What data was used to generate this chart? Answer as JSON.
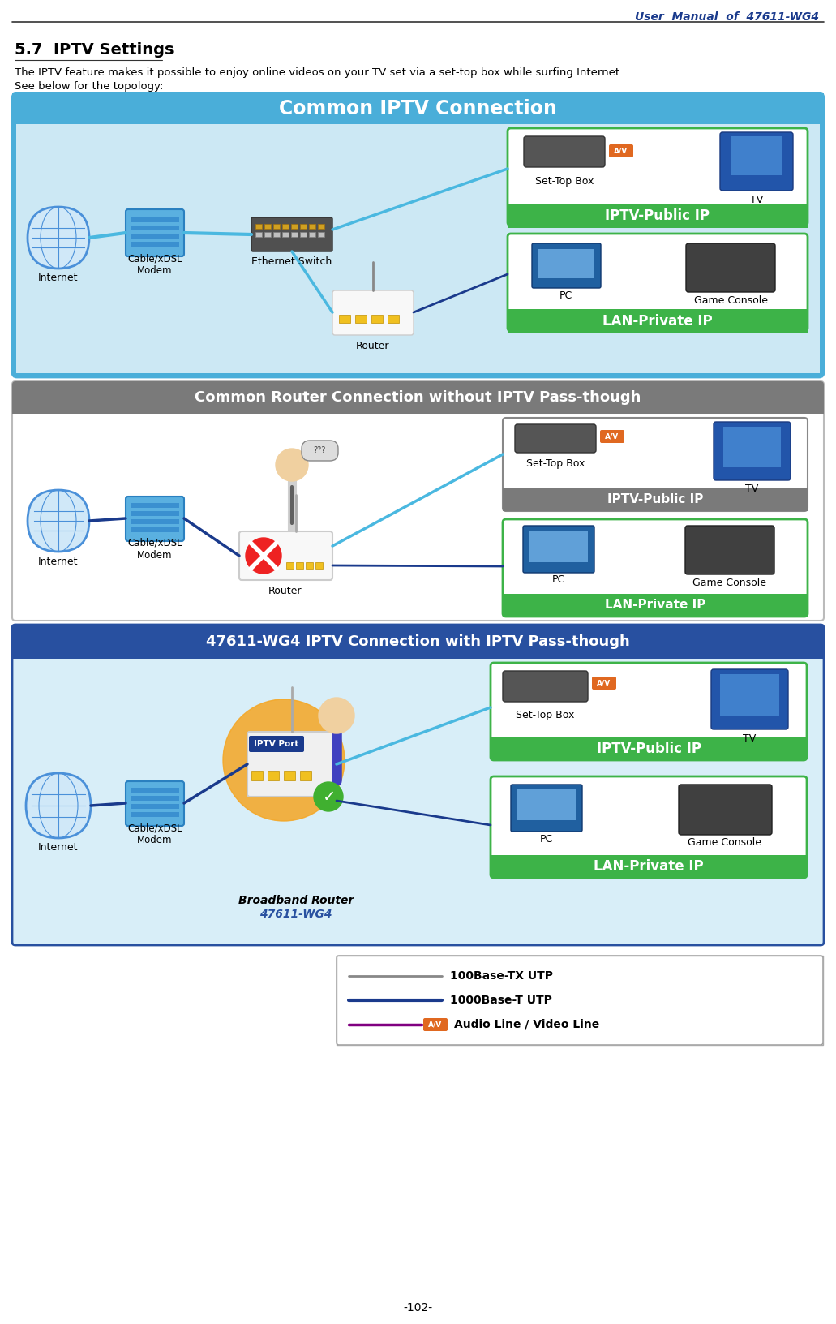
{
  "page_title": "User  Manual  of  47611-WG4",
  "page_title_color": "#1a3a8c",
  "section_title": "5.7  IPTV Settings",
  "para1": "The IPTV feature makes it possible to enjoy online videos on your TV set via a set-top box while surfing Internet.",
  "para2": "See below for the topology:",
  "page_number": "-102-",
  "diagram1_title": "Common IPTV Connection",
  "diagram1_bg": "#4aaed9",
  "diagram1_inner_bg": "#cce8f4",
  "green_box_color": "#3db348",
  "green_text_color": "#ffffff",
  "iptv_public_label": "IPTV-Public IP",
  "lan_private_label": "LAN-Private IP",
  "section2_bg": "#7a7a7a",
  "section2_title": "Common Router Connection without IPTV Pass-though",
  "section2_title_color": "#ffffff",
  "section2_inner_bg": "#f0f0f0",
  "section3_bg": "#2850a0",
  "section3_title": "47611-WG4 IPTV Connection with IPTV Pass-though",
  "section3_title_color": "#ffffff",
  "section3_inner_bg": "#d8eef8",
  "legend_border": "#888888",
  "legend_line1_color": "#888888",
  "legend_line2_color": "#1a3a8c",
  "legend_line3_color": "#800080",
  "legend_label1": "100Base-TX UTP",
  "legend_label2": "1000Base-T UTP",
  "legend_label3": "Audio Line / Video Line",
  "broadband_label1": "Broadband Router",
  "broadband_label2": "47611-WG4",
  "iptv_port_label": "IPTV Port",
  "iptv_port_color": "#f5a623",
  "av_box_color": "#e06820",
  "av_label": "A/V",
  "internet_label": "Internet",
  "cable_label": "Cable/xDSL\nModem",
  "router_label": "Router",
  "set_top_box_label": "Set-Top Box",
  "tv_label": "TV",
  "pc_label": "PC",
  "game_console_label": "Game Console",
  "ethernet_switch_label": "Ethernet Switch",
  "s2_iptv_public_label": "IPTV-Public IP",
  "s2_lan_private_label": "LAN-Private IP",
  "s2_box_border": "#555555",
  "line_blue_light": "#4ab8e0",
  "line_blue_dark": "#1a3a8c",
  "line_purple": "#6a3a9c"
}
